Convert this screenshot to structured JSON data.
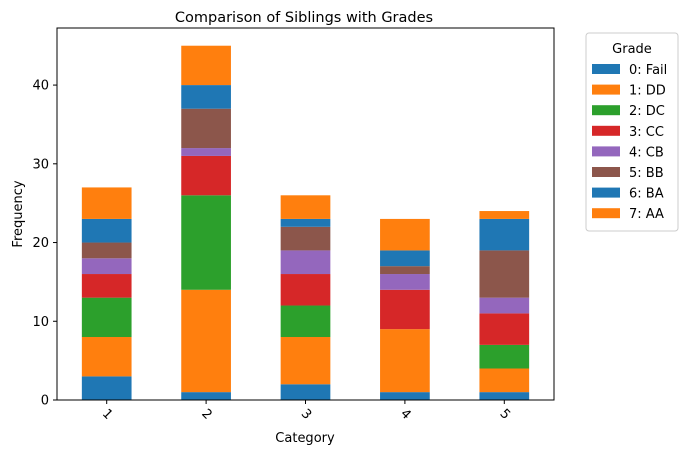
{
  "chart_data": {
    "type": "bar",
    "stacked": true,
    "title": "Comparison of Siblings with Grades",
    "xlabel": "Category",
    "ylabel": "Frequency",
    "categories": [
      "1",
      "2",
      "3",
      "4",
      "5"
    ],
    "ylim": [
      0,
      47.25
    ],
    "yticks": [
      0,
      10,
      20,
      30,
      40
    ],
    "legend": {
      "title": "Grade",
      "placement": "outside-top-right"
    },
    "series": [
      {
        "name": "0: Fail",
        "color": "#1f77b4",
        "values": [
          3,
          1,
          2,
          1,
          1
        ]
      },
      {
        "name": "1: DD",
        "color": "#ff7f0e",
        "values": [
          5,
          13,
          6,
          8,
          3
        ]
      },
      {
        "name": "2: DC",
        "color": "#2ca02c",
        "values": [
          5,
          12,
          4,
          0,
          3
        ]
      },
      {
        "name": "3: CC",
        "color": "#d62728",
        "values": [
          3,
          5,
          4,
          5,
          4
        ]
      },
      {
        "name": "4: CB",
        "color": "#9467bd",
        "values": [
          2,
          1,
          3,
          2,
          2
        ]
      },
      {
        "name": "5: BB",
        "color": "#8c564b",
        "values": [
          2,
          5,
          3,
          1,
          6
        ]
      },
      {
        "name": "6: BA",
        "color": "#1f77b4",
        "values": [
          3,
          3,
          1,
          2,
          4
        ]
      },
      {
        "name": "7: AA",
        "color": "#ff7f0e",
        "values": [
          4,
          5,
          3,
          4,
          1
        ]
      }
    ]
  }
}
